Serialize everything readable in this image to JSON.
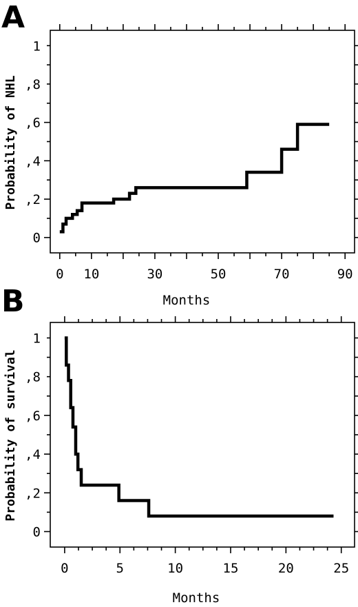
{
  "chart_data": [
    {
      "type": "line",
      "panel_label": "A",
      "title": "",
      "xlabel": "Months",
      "ylabel": "Probability of NHL",
      "xlim": [
        -3,
        93
      ],
      "ylim": [
        -0.08,
        1.08
      ],
      "xticks": [
        0,
        10,
        30,
        50,
        70,
        90
      ],
      "xtick_labels": [
        "0",
        "10",
        "30",
        "50",
        "70",
        "90"
      ],
      "yticks": [
        0,
        0.2,
        0.4,
        0.6,
        0.8,
        1
      ],
      "ytick_labels": [
        "0",
        ",2",
        ",4",
        ",6",
        ",8",
        "1"
      ],
      "grid": false,
      "step": true,
      "series": [
        {
          "x": [
            0,
            1,
            2,
            4,
            5.5,
            7,
            17,
            22,
            24,
            59,
            70,
            75,
            85
          ],
          "y": [
            0.03,
            0.07,
            0.1,
            0.12,
            0.14,
            0.18,
            0.2,
            0.23,
            0.26,
            0.34,
            0.46,
            0.59,
            0.59
          ]
        }
      ]
    },
    {
      "type": "line",
      "panel_label": "B",
      "title": "",
      "xlabel": "Months",
      "ylabel": "Probability of survival",
      "xlim": [
        -1.3,
        26.2
      ],
      "ylim": [
        -0.08,
        1.08
      ],
      "xticks": [
        0,
        5,
        10,
        15,
        20,
        25
      ],
      "xtick_labels": [
        "0",
        "5",
        "10",
        "15",
        "20",
        "25"
      ],
      "yticks": [
        0,
        0.2,
        0.4,
        0.6,
        0.8,
        1
      ],
      "ytick_labels": [
        "0",
        ",2",
        ",4",
        ",6",
        ",8",
        "1"
      ],
      "grid": false,
      "step": true,
      "series": [
        {
          "x": [
            0,
            0.15,
            0.35,
            0.55,
            0.75,
            1.0,
            1.2,
            1.5,
            4.9,
            7.6,
            24.3
          ],
          "y": [
            1.0,
            0.86,
            0.78,
            0.64,
            0.54,
            0.4,
            0.32,
            0.24,
            0.16,
            0.08,
            0.08
          ]
        }
      ]
    }
  ]
}
